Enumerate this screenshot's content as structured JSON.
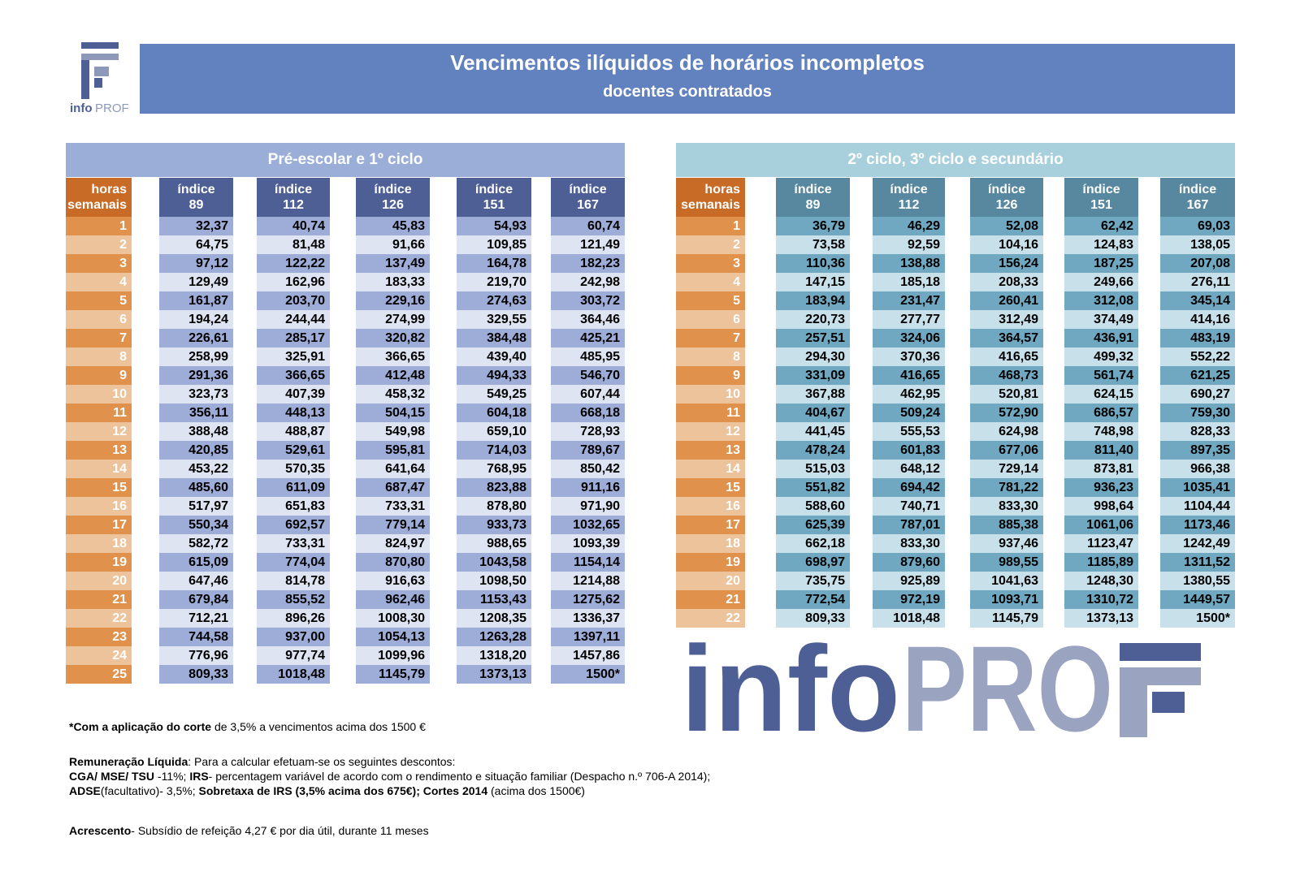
{
  "header": {
    "title": "Vencimentos ilíquidos de horários incompletos",
    "subtitle": "docentes contratados",
    "logo_text": "infoPROF"
  },
  "colors": {
    "banner": "#6281bf",
    "orange_dark": "#c86b26",
    "orange": "#e0924c",
    "navy": "#4e5f96",
    "teal": "#5788a0"
  },
  "tables": [
    {
      "section": "Pré-escolar e 1º ciclo",
      "hours_header": [
        "horas",
        "semanais"
      ],
      "index_headers": [
        [
          "índice",
          "89"
        ],
        [
          "índice",
          "112"
        ],
        [
          "índice",
          "126"
        ],
        [
          "índice",
          "151"
        ],
        [
          "índice",
          "167"
        ]
      ],
      "rows": [
        [
          "1",
          "32,37",
          "40,74",
          "45,83",
          "54,93",
          "60,74"
        ],
        [
          "2",
          "64,75",
          "81,48",
          "91,66",
          "109,85",
          "121,49"
        ],
        [
          "3",
          "97,12",
          "122,22",
          "137,49",
          "164,78",
          "182,23"
        ],
        [
          "4",
          "129,49",
          "162,96",
          "183,33",
          "219,70",
          "242,98"
        ],
        [
          "5",
          "161,87",
          "203,70",
          "229,16",
          "274,63",
          "303,72"
        ],
        [
          "6",
          "194,24",
          "244,44",
          "274,99",
          "329,55",
          "364,46"
        ],
        [
          "7",
          "226,61",
          "285,17",
          "320,82",
          "384,48",
          "425,21"
        ],
        [
          "8",
          "258,99",
          "325,91",
          "366,65",
          "439,40",
          "485,95"
        ],
        [
          "9",
          "291,36",
          "366,65",
          "412,48",
          "494,33",
          "546,70"
        ],
        [
          "10",
          "323,73",
          "407,39",
          "458,32",
          "549,25",
          "607,44"
        ],
        [
          "11",
          "356,11",
          "448,13",
          "504,15",
          "604,18",
          "668,18"
        ],
        [
          "12",
          "388,48",
          "488,87",
          "549,98",
          "659,10",
          "728,93"
        ],
        [
          "13",
          "420,85",
          "529,61",
          "595,81",
          "714,03",
          "789,67"
        ],
        [
          "14",
          "453,22",
          "570,35",
          "641,64",
          "768,95",
          "850,42"
        ],
        [
          "15",
          "485,60",
          "611,09",
          "687,47",
          "823,88",
          "911,16"
        ],
        [
          "16",
          "517,97",
          "651,83",
          "733,31",
          "878,80",
          "971,90"
        ],
        [
          "17",
          "550,34",
          "692,57",
          "779,14",
          "933,73",
          "1032,65"
        ],
        [
          "18",
          "582,72",
          "733,31",
          "824,97",
          "988,65",
          "1093,39"
        ],
        [
          "19",
          "615,09",
          "774,04",
          "870,80",
          "1043,58",
          "1154,14"
        ],
        [
          "20",
          "647,46",
          "814,78",
          "916,63",
          "1098,50",
          "1214,88"
        ],
        [
          "21",
          "679,84",
          "855,52",
          "962,46",
          "1153,43",
          "1275,62"
        ],
        [
          "22",
          "712,21",
          "896,26",
          "1008,30",
          "1208,35",
          "1336,37"
        ],
        [
          "23",
          "744,58",
          "937,00",
          "1054,13",
          "1263,28",
          "1397,11"
        ],
        [
          "24",
          "776,96",
          "977,74",
          "1099,96",
          "1318,20",
          "1457,86"
        ],
        [
          "25",
          "809,33",
          "1018,48",
          "1145,79",
          "1373,13",
          "1500*"
        ]
      ]
    },
    {
      "section": "2º ciclo, 3º ciclo e secundário",
      "hours_header": [
        "horas",
        "semanais"
      ],
      "index_headers": [
        [
          "índice",
          "89"
        ],
        [
          "índice",
          "112"
        ],
        [
          "índice",
          "126"
        ],
        [
          "índice",
          "151"
        ],
        [
          "índice",
          "167"
        ]
      ],
      "rows": [
        [
          "1",
          "36,79",
          "46,29",
          "52,08",
          "62,42",
          "69,03"
        ],
        [
          "2",
          "73,58",
          "92,59",
          "104,16",
          "124,83",
          "138,05"
        ],
        [
          "3",
          "110,36",
          "138,88",
          "156,24",
          "187,25",
          "207,08"
        ],
        [
          "4",
          "147,15",
          "185,18",
          "208,33",
          "249,66",
          "276,11"
        ],
        [
          "5",
          "183,94",
          "231,47",
          "260,41",
          "312,08",
          "345,14"
        ],
        [
          "6",
          "220,73",
          "277,77",
          "312,49",
          "374,49",
          "414,16"
        ],
        [
          "7",
          "257,51",
          "324,06",
          "364,57",
          "436,91",
          "483,19"
        ],
        [
          "8",
          "294,30",
          "370,36",
          "416,65",
          "499,32",
          "552,22"
        ],
        [
          "9",
          "331,09",
          "416,65",
          "468,73",
          "561,74",
          "621,25"
        ],
        [
          "10",
          "367,88",
          "462,95",
          "520,81",
          "624,15",
          "690,27"
        ],
        [
          "11",
          "404,67",
          "509,24",
          "572,90",
          "686,57",
          "759,30"
        ],
        [
          "12",
          "441,45",
          "555,53",
          "624,98",
          "748,98",
          "828,33"
        ],
        [
          "13",
          "478,24",
          "601,83",
          "677,06",
          "811,40",
          "897,35"
        ],
        [
          "14",
          "515,03",
          "648,12",
          "729,14",
          "873,81",
          "966,38"
        ],
        [
          "15",
          "551,82",
          "694,42",
          "781,22",
          "936,23",
          "1035,41"
        ],
        [
          "16",
          "588,60",
          "740,71",
          "833,30",
          "998,64",
          "1104,44"
        ],
        [
          "17",
          "625,39",
          "787,01",
          "885,38",
          "1061,06",
          "1173,46"
        ],
        [
          "18",
          "662,18",
          "833,30",
          "937,46",
          "1123,47",
          "1242,49"
        ],
        [
          "19",
          "698,97",
          "879,60",
          "989,55",
          "1185,89",
          "1311,52"
        ],
        [
          "20",
          "735,75",
          "925,89",
          "1041,63",
          "1248,30",
          "1380,55"
        ],
        [
          "21",
          "772,54",
          "972,19",
          "1093,71",
          "1310,72",
          "1449,57"
        ],
        [
          "22",
          "809,33",
          "1018,48",
          "1145,79",
          "1373,13",
          "1500*"
        ]
      ]
    }
  ],
  "notes": {
    "cut_bold": "*Com a aplicação do corte",
    "cut_rest": " de 3,5% a vencimentos acima dos 1500 €",
    "rem_bold": "Remuneração Líquida",
    "rem_rest": ": Para a calcular efetuam-se os seguintes descontos:",
    "cga_bold": "CGA/ MSE/ TSU",
    "cga_rest": " -11%;  ",
    "irs_bold": "IRS",
    "irs_rest": "- percentagem variável de acordo com o rendimento e situação familiar (Despacho n.º 706-A 2014);",
    "adse_bold": "ADSE",
    "adse_rest": "(facultativo)- 3,5%; ",
    "sobre_bold": "Sobretaxa de IRS (3,5% acima dos 675€); Cortes 2014",
    "sobre_rest": " (acima dos 1500€)",
    "acr_bold": "Acrescento",
    "acr_rest": "- Subsídio de refeição 4,27 € por dia útil, durante 11 meses"
  }
}
